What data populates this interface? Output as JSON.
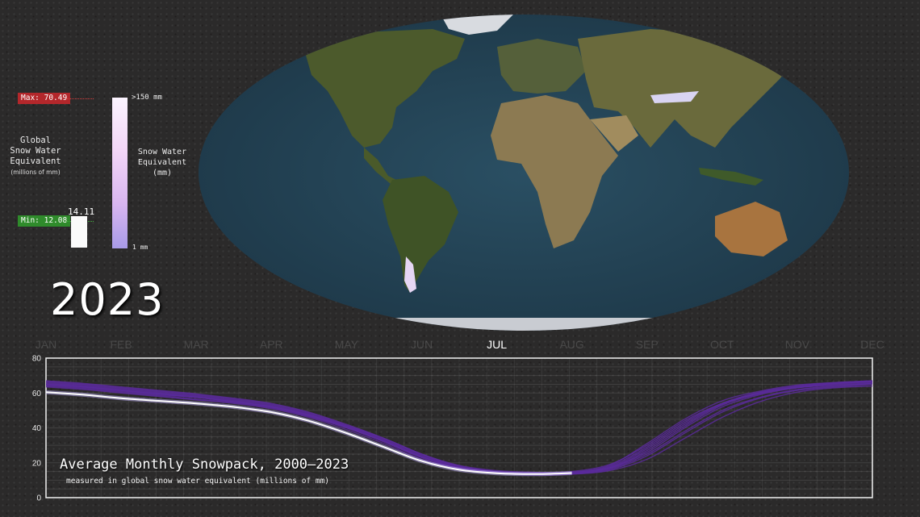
{
  "year": "2023",
  "gauge": {
    "title_lines": [
      "Global",
      "Snow Water",
      "Equivalent"
    ],
    "unit": "(millions of mm)",
    "max_label": "Max: 70.49",
    "min_label": "Min: 12.08",
    "current_value": "14.11",
    "max": 70.49,
    "min": 12.08,
    "current": 14.11,
    "colors": {
      "max": "#b3272b",
      "min": "#2f8b2b"
    }
  },
  "colorbar": {
    "top_label": ">150 mm",
    "bottom_label": "1 mm",
    "title_lines": [
      "Snow Water",
      "Equivalent",
      "(mm)"
    ]
  },
  "chart_data": {
    "type": "line",
    "title": "Average Monthly Snowpack, 2000–2023",
    "subtitle": "measured in global snow water equivalent (millions of mm)",
    "categories": [
      "JAN",
      "FEB",
      "MAR",
      "APR",
      "MAY",
      "JUN",
      "JUL",
      "AUG",
      "SEP",
      "OCT",
      "NOV",
      "DEC"
    ],
    "highlighted_month": "JUL",
    "ylim": [
      0,
      80
    ],
    "yticks": [
      0,
      20,
      40,
      60,
      80
    ],
    "grid": true,
    "x": [
      0,
      0.5,
      1,
      1.5,
      2,
      2.5,
      3,
      3.5,
      4,
      4.5,
      5,
      5.5,
      6,
      6.5,
      7,
      7.5,
      8,
      8.5,
      9,
      9.5,
      10,
      10.5,
      11
    ],
    "current_series": {
      "name": "2023",
      "color": "#ffffff",
      "x": [
        0,
        0.5,
        1,
        1.5,
        2,
        2.5,
        3,
        3.5,
        4,
        4.5,
        5,
        5.5,
        6,
        6.5,
        7
      ],
      "values": [
        60.5,
        59,
        57,
        55.5,
        54,
        52,
        49,
        44,
        37,
        29,
        21,
        16,
        14,
        13.5,
        14.11
      ]
    },
    "past_series_color": "#5a2a9c",
    "past_series": [
      {
        "values": [
          64.5,
          63,
          61,
          59,
          57.5,
          55,
          52,
          47,
          40,
          32,
          23,
          17,
          14.5,
          13.5,
          14,
          17,
          26,
          40,
          52,
          59,
          63,
          65,
          66
        ]
      },
      {
        "values": [
          66,
          64.5,
          62.5,
          60.5,
          58.5,
          56,
          53,
          48,
          41,
          33,
          24,
          18,
          15,
          14,
          15,
          19,
          30,
          44,
          54,
          60,
          63.5,
          65.5,
          66.5
        ]
      },
      {
        "values": [
          65,
          63.5,
          61.5,
          59.5,
          57.5,
          55,
          52,
          47.5,
          41,
          34,
          25,
          18.5,
          15.5,
          14.5,
          14.5,
          17,
          27,
          41,
          53,
          59.5,
          63,
          64.5,
          65.5
        ]
      },
      {
        "values": [
          67,
          65.5,
          63.5,
          61.5,
          59.5,
          57,
          54,
          49,
          42,
          34,
          25,
          18,
          14.5,
          13.5,
          14,
          18,
          29,
          43,
          54,
          60.5,
          64,
          66,
          67
        ]
      },
      {
        "values": [
          63.5,
          62,
          60,
          58,
          56,
          54,
          51,
          46,
          39,
          31,
          22,
          16.5,
          14,
          13,
          13.5,
          16,
          24,
          37,
          49,
          57,
          61.5,
          63.5,
          65
        ]
      },
      {
        "values": [
          65.5,
          64,
          62,
          60,
          58,
          55.5,
          52.5,
          47.5,
          40.5,
          32.5,
          23.5,
          17.5,
          15,
          14,
          14.5,
          17.5,
          28,
          42,
          53.5,
          60,
          63.5,
          65.5,
          66.5
        ]
      },
      {
        "values": [
          64,
          62.5,
          60.5,
          58.5,
          56.5,
          54.5,
          51.5,
          46.5,
          40,
          32,
          23,
          17,
          14.5,
          13.5,
          14,
          16.5,
          25,
          38,
          50,
          57.5,
          62,
          64,
          65.5
        ]
      },
      {
        "values": [
          66.5,
          65,
          63,
          61,
          59,
          56.5,
          53.5,
          48.5,
          41.5,
          33.5,
          24.5,
          18,
          15,
          14,
          14.5,
          18.5,
          31,
          45,
          55.5,
          61,
          64.5,
          66,
          67
        ]
      },
      {
        "values": [
          65,
          63.5,
          61.5,
          59.5,
          57.5,
          55,
          52,
          47,
          40.5,
          32.5,
          23.5,
          17.5,
          14.5,
          13.5,
          13.5,
          15.5,
          22,
          34,
          46,
          55,
          60.5,
          63,
          64
        ]
      }
    ]
  }
}
